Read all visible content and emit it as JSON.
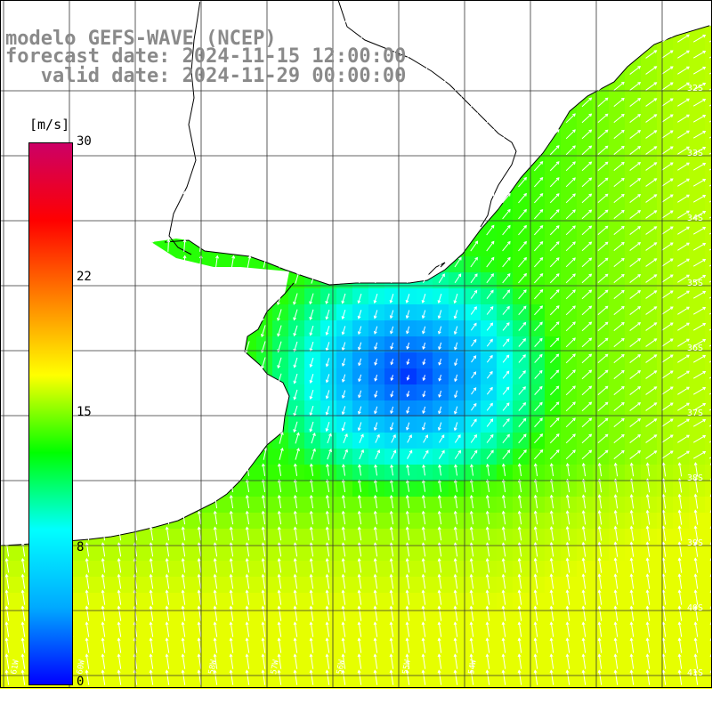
{
  "header": {
    "model": "modelo GEFS-WAVE (NCEP)",
    "forecast": "forecast date: 2024-11-15 12:00:00",
    "valid": "   valid date: 2024-11-29 00:00:00"
  },
  "colorbar": {
    "unit": "[m/s]",
    "ticks": [
      "30",
      "22",
      "15",
      "8",
      "0"
    ],
    "colors": [
      "#0000ff",
      "#00aaff",
      "#00ffff",
      "#00ff00",
      "#ffff00",
      "#ff8000",
      "#ff0000",
      "#cc0066"
    ]
  },
  "map": {
    "lat_labels": [
      "32S",
      "33S",
      "34S",
      "35S",
      "36S",
      "37S",
      "38S",
      "39S",
      "40S",
      "41S"
    ],
    "lon_labels": [
      "61W",
      "60W",
      "58W",
      "57W",
      "56W",
      "55W",
      "54W"
    ],
    "land_color": "#ffffff",
    "arrow_color": "#ffffff",
    "grid_color": "#333333"
  }
}
